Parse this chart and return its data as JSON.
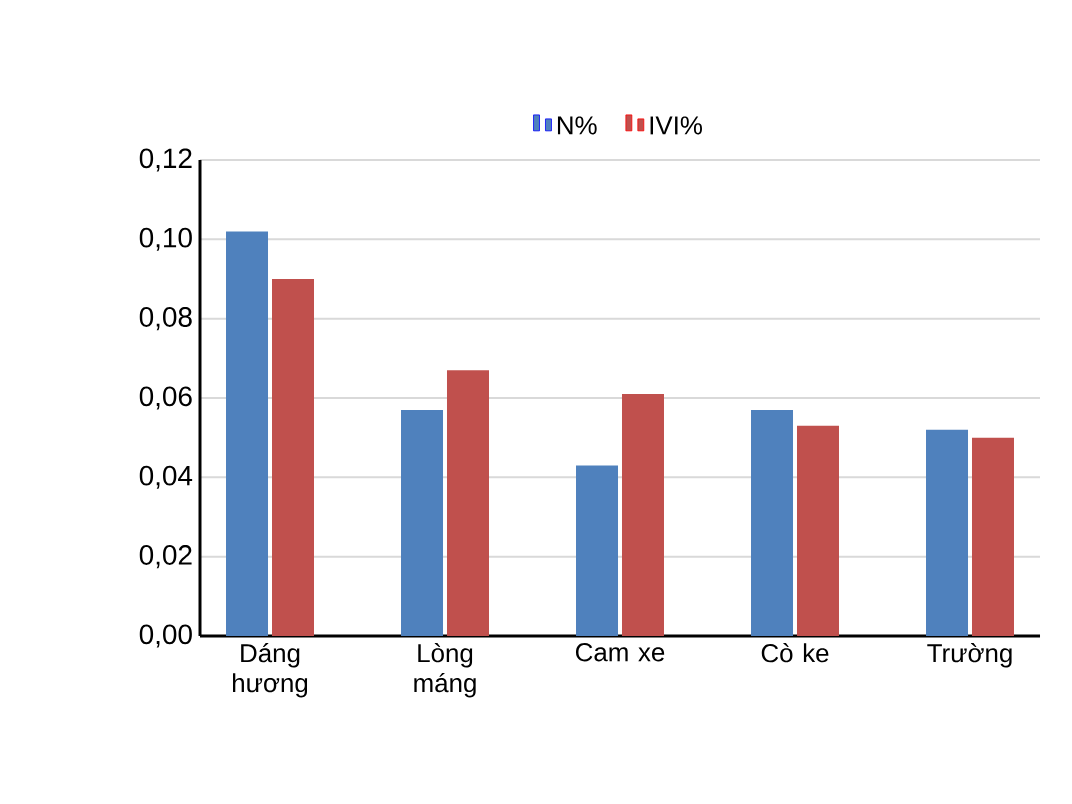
{
  "chart_data": {
    "type": "bar",
    "categories": [
      "Dáng hương",
      "Lòng máng",
      "Cam xe",
      "Cò ke",
      "Trường"
    ],
    "series": [
      {
        "name": "N%",
        "color": "#4f81bd",
        "values": [
          0.102,
          0.057,
          0.043,
          0.057,
          0.052
        ]
      },
      {
        "name": "IVI%",
        "color": "#c0504d",
        "values": [
          0.09,
          0.067,
          0.061,
          0.053,
          0.05
        ]
      }
    ],
    "ylim": [
      0,
      0.12
    ],
    "yticks": [
      {
        "value": 0,
        "label": "0,00"
      },
      {
        "value": 0.02,
        "label": "0,02"
      },
      {
        "value": 0.04,
        "label": "0,04"
      },
      {
        "value": 0.06,
        "label": "0,06"
      },
      {
        "value": 0.08,
        "label": "0,08"
      },
      {
        "value": 0.1,
        "label": "0,10"
      },
      {
        "value": 0.12,
        "label": "0,12"
      }
    ],
    "grid": "y",
    "legend": "top"
  }
}
